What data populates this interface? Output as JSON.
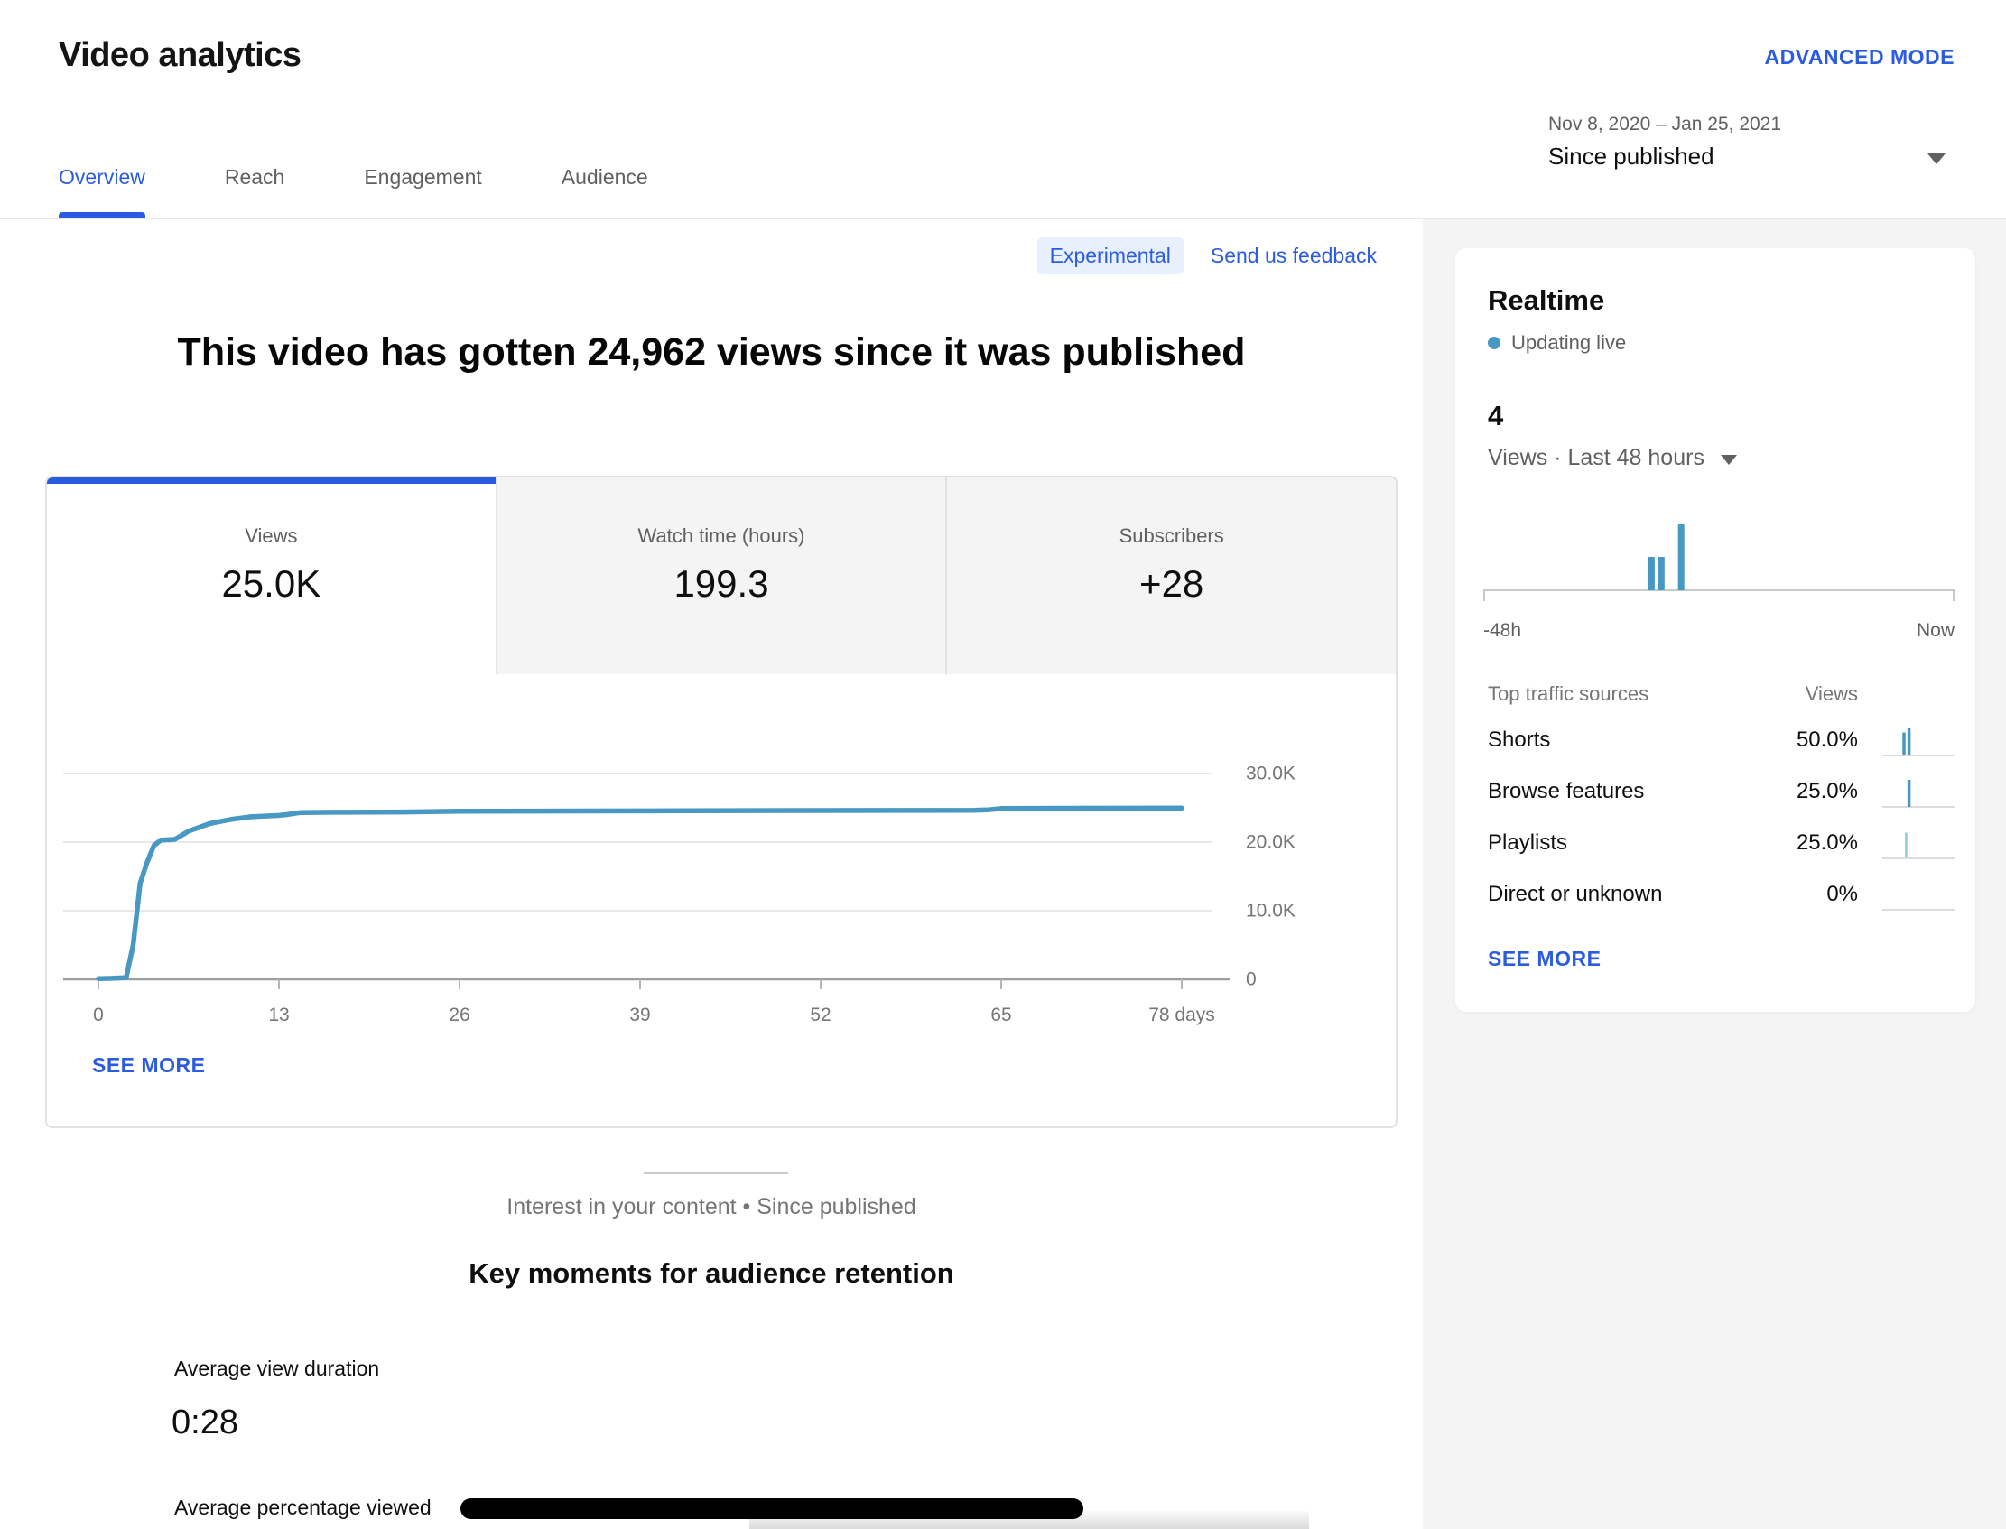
{
  "header": {
    "title": "Video analytics",
    "advanced_mode_label": "ADVANCED MODE",
    "tabs": [
      {
        "label": "Overview",
        "active": true
      },
      {
        "label": "Reach",
        "active": false
      },
      {
        "label": "Engagement",
        "active": false
      },
      {
        "label": "Audience",
        "active": false
      }
    ],
    "date_range": "Nov 8, 2020 – Jan 25, 2021",
    "date_preset": "Since published"
  },
  "experimental_badge": "Experimental",
  "feedback_link": "Send us feedback",
  "headline": "This video has gotten 24,962 views since it was published",
  "metric_tabs": [
    {
      "label": "Views",
      "value": "25.0K",
      "active": true
    },
    {
      "label": "Watch time (hours)",
      "value": "199.3",
      "active": false
    },
    {
      "label": "Subscribers",
      "value": "+28",
      "active": false
    }
  ],
  "card_see_more": "SEE MORE",
  "interest_caption": "Interest in your content • Since published",
  "key_moments_title": "Key moments for audience retention",
  "avg_view_duration_label": "Average view duration",
  "avg_view_duration_value": "0:28",
  "avg_pct_viewed_label": "Average percentage viewed",
  "realtime": {
    "title": "Realtime",
    "live_status": "Updating live",
    "count": "4",
    "metric_label": "Views · Last 48 hours",
    "axis_left": "-48h",
    "axis_right": "Now",
    "traffic": {
      "col_sources": "Top traffic sources",
      "col_views": "Views",
      "rows": [
        {
          "label": "Shorts",
          "value": "50.0%",
          "spark": [
            {
              "pos": 0.3,
              "h": 0.85,
              "light": false
            },
            {
              "pos": 0.37,
              "h": 1.0,
              "light": false
            }
          ]
        },
        {
          "label": "Browse features",
          "value": "25.0%",
          "spark": [
            {
              "pos": 0.37,
              "h": 1.0,
              "light": false
            }
          ]
        },
        {
          "label": "Playlists",
          "value": "25.0%",
          "spark": [
            {
              "pos": 0.33,
              "h": 0.95,
              "light": true
            }
          ]
        },
        {
          "label": "Direct or unknown",
          "value": "0%",
          "spark": []
        }
      ],
      "see_more": "SEE MORE"
    }
  },
  "chart_data": [
    {
      "id": "views-since-published",
      "type": "line",
      "title": "Views since published (cumulative)",
      "x": [
        0,
        1,
        2,
        2.5,
        3,
        3.5,
        4,
        4.5,
        5.5,
        6.5,
        8,
        9.5,
        11,
        13,
        13.5,
        14.5,
        17,
        22,
        26,
        32,
        40,
        50,
        58,
        63,
        64,
        65,
        70,
        78
      ],
      "y": [
        100,
        150,
        250,
        5000,
        14000,
        17000,
        19500,
        20300,
        20400,
        21600,
        22700,
        23300,
        23700,
        23900,
        24000,
        24300,
        24350,
        24400,
        24500,
        24520,
        24550,
        24600,
        24620,
        24650,
        24700,
        24900,
        24930,
        24962
      ],
      "xlabel": "days",
      "ylabel": "Views",
      "xlim": [
        0,
        78
      ],
      "ylim": [
        0,
        38500
      ],
      "x_tick_values": [
        0,
        13,
        26,
        39,
        52,
        65,
        78
      ],
      "x_tick_labels": [
        "0",
        "13",
        "26",
        "39",
        "52",
        "65",
        "78 days"
      ],
      "y_tick_values": [
        30000,
        20000,
        10000,
        0
      ],
      "y_tick_labels": [
        "30.0K",
        "20.0K",
        "10.0K",
        "0"
      ],
      "grid": true,
      "line_color": "#4798c2"
    },
    {
      "id": "realtime-last-48h",
      "type": "bar",
      "title": "Views · Last 48 hours",
      "total_views": 4,
      "bars": [
        {
          "pos": 0.357,
          "value": 1
        },
        {
          "pos": 0.378,
          "value": 1
        },
        {
          "pos": 0.42,
          "value": 2
        }
      ],
      "x_range_labels": [
        "-48h",
        "Now"
      ],
      "bar_color": "#4798c2"
    }
  ],
  "colors": {
    "accent_blue": "#2b5ce0",
    "chart_line_blue": "#4798c2",
    "spark_light_blue": "#8ec7de",
    "sidebar_bg": "#f4f4f4",
    "badge_bg": "#e8f0fe",
    "text_gray": "#606060",
    "redaction_black": "#000000"
  }
}
